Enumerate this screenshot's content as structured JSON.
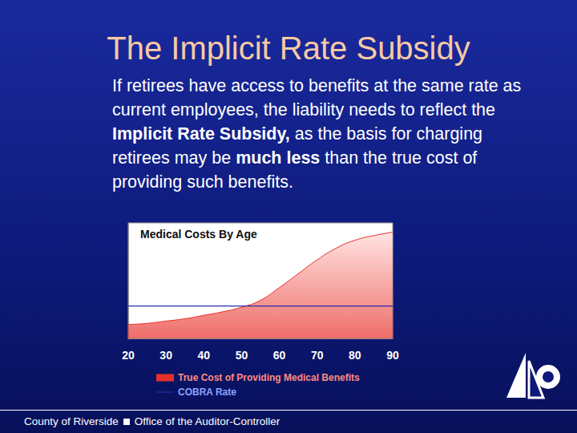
{
  "slide": {
    "title": "The Implicit Rate Subsidy",
    "body": [
      {
        "text": "If retirees have access to benefits at the same rate as current employees, the liability needs to reflect the "
      },
      {
        "text": "Implicit Rate Subsidy,",
        "bold": true
      },
      {
        "text": " as the basis for charging retirees may be "
      },
      {
        "text": "much less",
        "bold": true
      },
      {
        "text": " than the true cost of providing such benefits."
      }
    ],
    "footer_left": "County of Riverside",
    "footer_right": "Office of the Auditor-Controller"
  },
  "chart_data": {
    "type": "area",
    "title": "Medical Costs By Age",
    "x": [
      20,
      25,
      30,
      35,
      40,
      45,
      50,
      55,
      60,
      65,
      70,
      75,
      80,
      85,
      90
    ],
    "series": [
      {
        "name": "True Cost of Providing Medical Benefits",
        "type": "area",
        "color": "#e8302a",
        "values": [
          12,
          13,
          15,
          17,
          20,
          23,
          27,
          33,
          44,
          56,
          68,
          78,
          85,
          89,
          92
        ]
      },
      {
        "name": "COBRA Rate",
        "type": "line",
        "color": "#2b2fa8",
        "values": [
          28,
          28,
          28,
          28,
          28,
          28,
          28,
          28,
          28,
          28,
          28,
          28,
          28,
          28,
          28
        ]
      }
    ],
    "xlim": [
      20,
      90
    ],
    "xticks": [
      20,
      30,
      40,
      50,
      60,
      70,
      80,
      90
    ],
    "ylim": [
      0,
      100
    ],
    "grid": false,
    "legend": "bottom",
    "tick_labels": "x"
  }
}
